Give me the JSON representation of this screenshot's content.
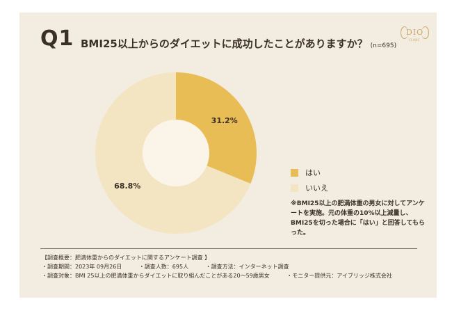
{
  "header": {
    "q_label": "Q1",
    "question": "BMI25以上からのダイエットに成功したことがありますか？",
    "sample": "(n=695)"
  },
  "logo": {
    "text": "DIO",
    "sub": "CLINIC"
  },
  "colors": {
    "yes": "#e8bd55",
    "no": "#f3e4c2",
    "center": "#fbf4e9",
    "background": "#f3ece1"
  },
  "chart_data": {
    "type": "pie",
    "donut": true,
    "categories": [
      "はい",
      "いいえ"
    ],
    "values": [
      31.2,
      68.8
    ],
    "data_labels": [
      "31.2%",
      "68.8%"
    ],
    "legend": [
      "はい",
      "いいえ"
    ],
    "legend_position": "right"
  },
  "note": "※BMI25以上の肥満体重の男女に対してアンケートを実施。元の体重の10%以上減量し、BMI25を切った場合に「はい」と回答してもらった。",
  "summary": {
    "heading": "【調査概要：肥満体重からのダイエットに関するアンケート調査 】",
    "period": "・調査期間：2023年 09月26日",
    "count": "・調査人数：695人",
    "method": "・調査方法：インターネット調査",
    "target": "・調査対象：BMI 25以上の肥満体重からダイエットに取り組んだことがある20～59歳男女",
    "provider": "・モニター提供元：アイブリッジ株式会社"
  }
}
